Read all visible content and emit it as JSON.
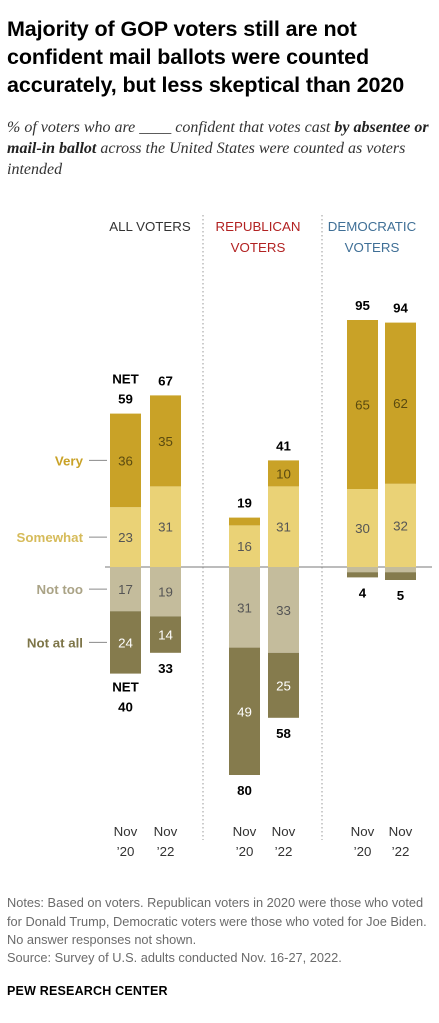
{
  "header": {
    "title": "Majority of GOP voters still are not confident mail ballots were counted accurately, but less skeptical than 2020",
    "subtitle_pre": "% of voters who are ____ confident that votes cast ",
    "subtitle_bold": "by absentee or mail-in ballot",
    "subtitle_post": " across the United States were counted as voters intended"
  },
  "chart_data": {
    "type": "bar",
    "stacked": "diverging",
    "groups": [
      "ALL VOTERS",
      "REPUBLICAN VOTERS",
      "DEMOCRATIC VOTERS"
    ],
    "group_colors": [
      "#333333",
      "#b22222",
      "#3f6f96"
    ],
    "categories": [
      "Nov '20",
      "Nov '22"
    ],
    "series": [
      {
        "name": "Very",
        "color": "#c9a227",
        "text_color": "#c9a227",
        "direction": "up",
        "values": [
          [
            36,
            35
          ],
          [
            3,
            10
          ],
          [
            65,
            62
          ]
        ]
      },
      {
        "name": "Somewhat",
        "color": "#ead276",
        "text_color": "#d6bb5a",
        "direction": "up",
        "values": [
          [
            23,
            31
          ],
          [
            16,
            31
          ],
          [
            30,
            32
          ]
        ]
      },
      {
        "name": "Not too",
        "color": "#c4bc9c",
        "text_color": "#aaa386",
        "direction": "down",
        "values": [
          [
            17,
            19
          ],
          [
            31,
            33
          ],
          [
            2,
            2
          ]
        ]
      },
      {
        "name": "Not at all",
        "color": "#857b4d",
        "text_color": "#7d7548",
        "direction": "down",
        "values": [
          [
            24,
            14
          ],
          [
            49,
            25
          ],
          [
            2,
            3
          ]
        ]
      }
    ],
    "segment_labels": {
      "Very": [
        [
          "36",
          "35"
        ],
        [
          "",
          "10"
        ],
        [
          "65",
          "62"
        ]
      ],
      "Somewhat": [
        [
          "23",
          "31"
        ],
        [
          "16",
          "31"
        ],
        [
          "30",
          "32"
        ]
      ],
      "Not too": [
        [
          "17",
          "19"
        ],
        [
          "31",
          "33"
        ],
        [
          "",
          ""
        ]
      ],
      "Not at all": [
        [
          "24",
          "14"
        ],
        [
          "49",
          "25"
        ],
        [
          "",
          ""
        ]
      ]
    },
    "net_confident": [
      [
        59,
        67
      ],
      [
        19,
        41
      ],
      [
        95,
        94
      ]
    ],
    "net_not_confident": [
      [
        40,
        33
      ],
      [
        80,
        58
      ],
      [
        4,
        5
      ]
    ],
    "net_label": "NET",
    "x_month": [
      "Nov",
      "Nov"
    ],
    "x_year": [
      "’20",
      "’22"
    ]
  },
  "footer": {
    "notes": "Notes: Based on voters. Republican voters in 2020 were those who voted for Donald Trump, Democratic voters were those who voted for Joe Biden. No answer responses not shown.",
    "source": "Source: Survey of U.S. adults conducted Nov. 16-27, 2022.",
    "brand": "PEW RESEARCH CENTER"
  }
}
